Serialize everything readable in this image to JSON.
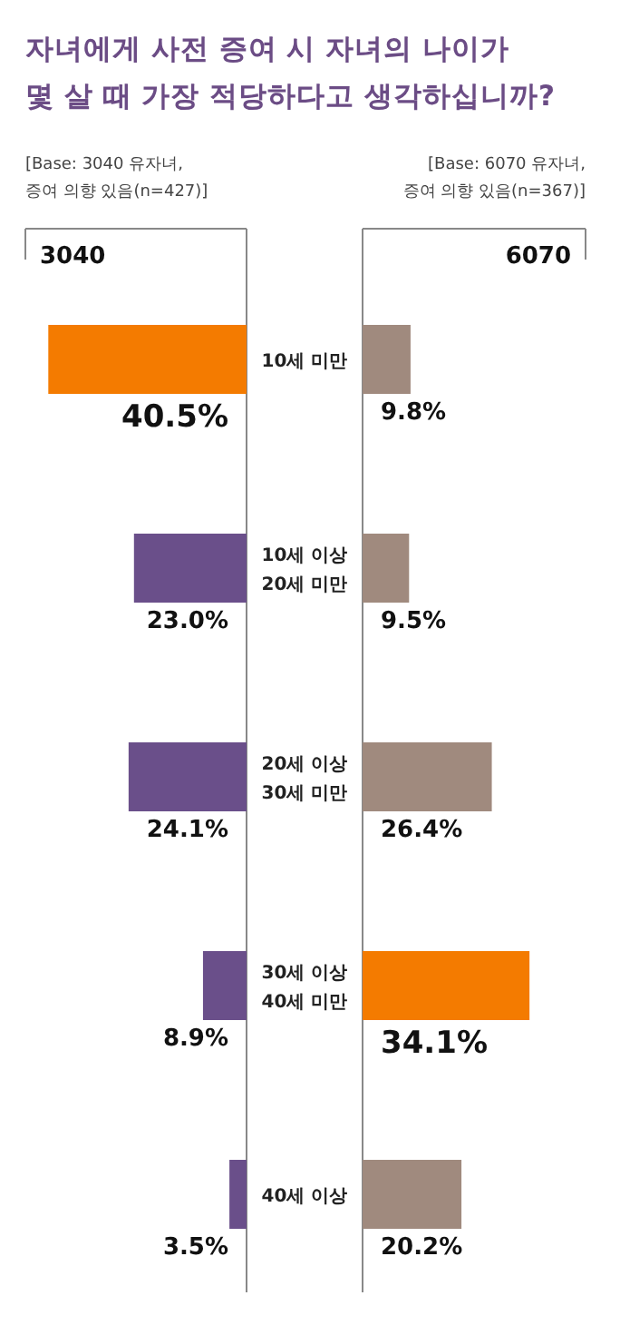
{
  "chart_data": [
    {
      "type": "bar",
      "orientation": "horizontal",
      "title": "자녀에게 사전 증여 시 자녀의 나이가\n몇 살 때 가장 적당하다고 생각하십니까?",
      "subtitle": "3040",
      "annotations": [
        "[Base: 3040 유자녀, 증여 의향 있음(n=427)]"
      ],
      "categories": [
        "10세 미만",
        "10세 이상 20세 미만",
        "20세 이상 30세 미만",
        "30세 이상 40세 미만",
        "40세 이상"
      ],
      "colors": [
        "#f47b00",
        "#6a4f8a",
        "#6a4f8a",
        "#6a4f8a",
        "#6a4f8a"
      ],
      "values": [
        40.5,
        23.0,
        24.1,
        8.9,
        3.5
      ],
      "value_labels": [
        "40.5%",
        "23.0%",
        "24.1%",
        "8.9%",
        "3.5%"
      ]
    },
    {
      "type": "bar",
      "orientation": "horizontal",
      "subtitle": "6070",
      "annotations": [
        "[Base: 6070 유자녀, 증여 의향 있음(n=367)]"
      ],
      "categories": [
        null,
        null,
        null,
        null,
        null
      ],
      "colors": [
        "#a08a7e",
        "#a08a7e",
        "#a08a7e",
        "#f47b00",
        "#a08a7e"
      ],
      "values": [
        9.8,
        9.5,
        26.4,
        34.1,
        20.2
      ],
      "value_labels": [
        "9.8%",
        "9.5%",
        "26.4%",
        "34.1%",
        "20.2%"
      ]
    }
  ]
}
